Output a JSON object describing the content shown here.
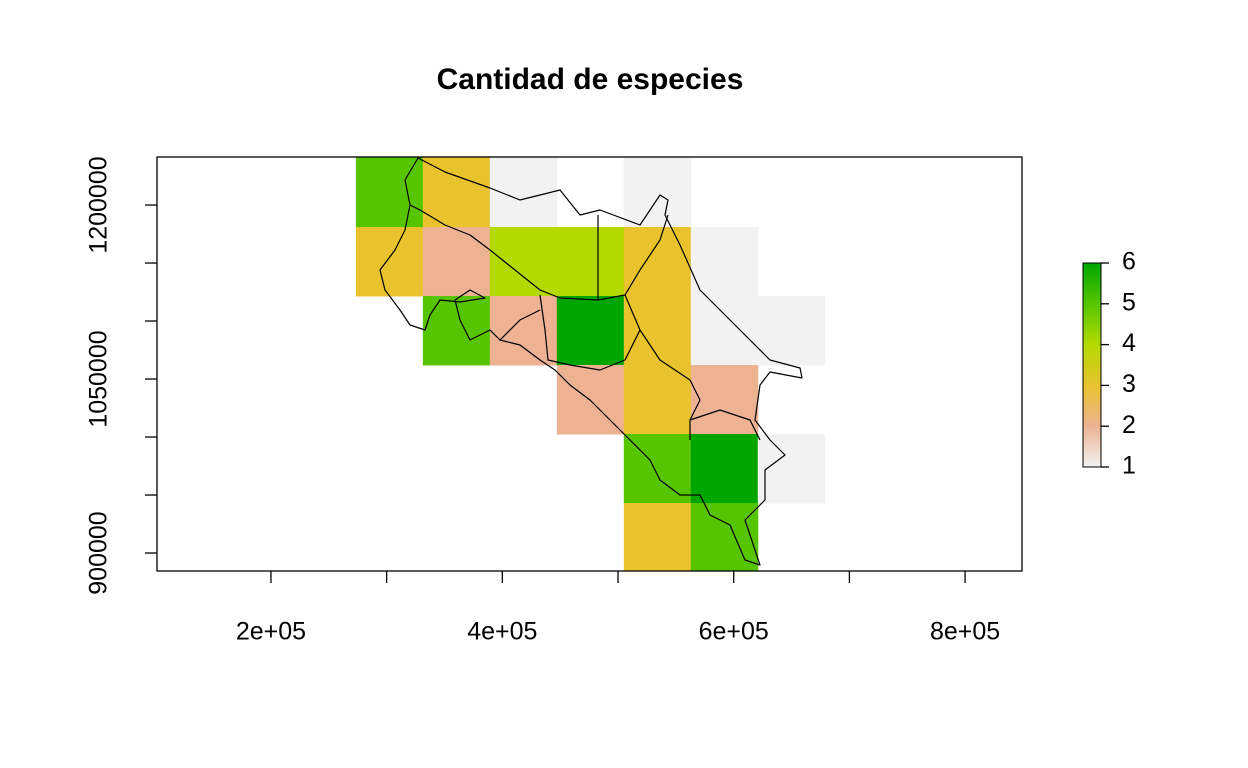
{
  "chart_data": {
    "type": "raster",
    "title": "Cantidad de especies",
    "xlim": [
      101500,
      849200
    ],
    "ylim": [
      884500,
      1241400
    ],
    "xticks": [
      {
        "value": 200000,
        "label": "2e+05"
      },
      {
        "value": 400000,
        "label": "4e+05"
      },
      {
        "value": 600000,
        "label": "6e+05"
      },
      {
        "value": 800000,
        "label": "8e+05"
      }
    ],
    "xticks_minor": [
      300000,
      500000,
      700000
    ],
    "yticks": [
      900000,
      1050000,
      1200000
    ],
    "yticks_minor": [
      950000,
      1000000,
      1100000,
      1150000
    ],
    "x_edges": [
      273400,
      331300,
      389200,
      447100,
      505000,
      562900,
      620800,
      678700
    ],
    "y_edges": [
      1241400,
      1181000,
      1121600,
      1062100,
      1002600,
      943100,
      884500
    ],
    "values": [
      [
        5,
        3,
        1,
        null,
        1,
        null,
        null
      ],
      [
        3,
        2,
        4,
        4,
        3,
        1,
        null
      ],
      [
        null,
        5,
        2,
        6,
        3,
        1,
        1
      ],
      [
        null,
        null,
        null,
        2,
        3,
        2,
        null
      ],
      [
        null,
        null,
        null,
        null,
        5,
        6,
        1
      ],
      [
        null,
        null,
        null,
        null,
        3,
        5,
        null
      ]
    ],
    "color_scale": {
      "breaks": [
        1,
        2,
        3,
        4,
        5,
        6
      ],
      "colors": [
        "#f2f2f2",
        "#ecb292",
        "#e8c32e",
        "#b3d900",
        "#56c500",
        "#00a600"
      ]
    },
    "legend_ticks": [
      1,
      2,
      3,
      4,
      5,
      6
    ]
  }
}
